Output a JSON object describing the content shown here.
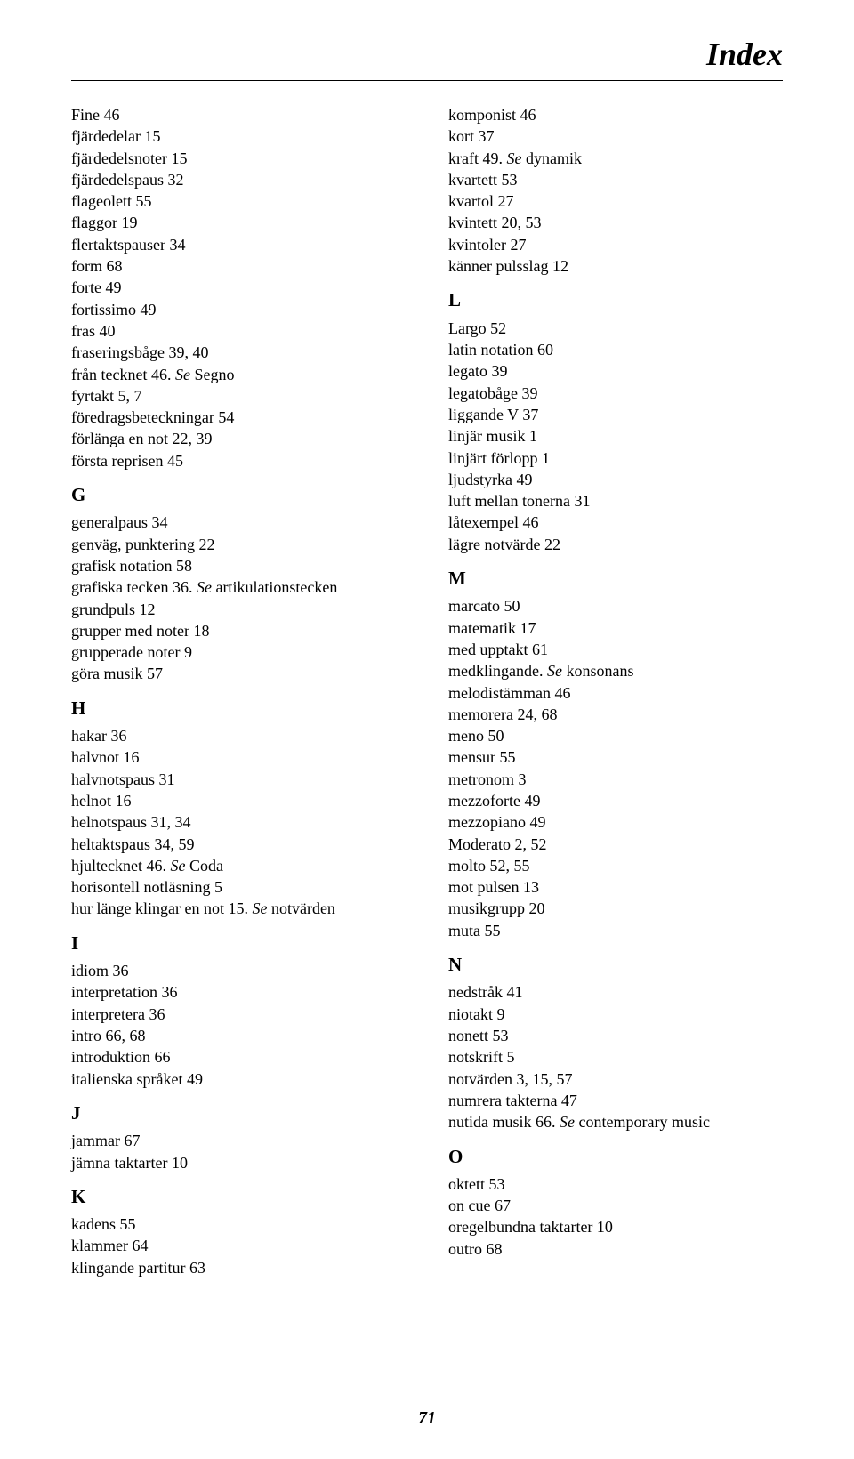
{
  "title": "Index",
  "pageNumber": "71",
  "columns": {
    "left": [
      {
        "type": "entry",
        "text": "Fine 46"
      },
      {
        "type": "entry",
        "text": "fjärdedelar 15"
      },
      {
        "type": "entry",
        "text": "fjärdedelsnoter 15"
      },
      {
        "type": "entry",
        "text": "fjärdedelspaus 32"
      },
      {
        "type": "entry",
        "text": "flageolett 55"
      },
      {
        "type": "entry",
        "text": "flaggor 19"
      },
      {
        "type": "entry",
        "text": "flertaktspauser 34"
      },
      {
        "type": "entry",
        "text": "form 68"
      },
      {
        "type": "entry",
        "text": "forte 49"
      },
      {
        "type": "entry",
        "text": "fortissimo 49"
      },
      {
        "type": "entry",
        "text": "fras 40"
      },
      {
        "type": "entry",
        "text": "fraseringsbåge 39, 40"
      },
      {
        "type": "see",
        "main": "från tecknet 46. ",
        "see": "Se",
        "rest": " Segno"
      },
      {
        "type": "entry",
        "text": "fyrtakt 5, 7"
      },
      {
        "type": "entry",
        "text": "föredragsbeteckningar 54"
      },
      {
        "type": "entry",
        "text": "förlänga en not 22, 39"
      },
      {
        "type": "entry",
        "text": "första reprisen 45"
      },
      {
        "type": "letter",
        "text": "G"
      },
      {
        "type": "entry",
        "text": "generalpaus 34"
      },
      {
        "type": "entry",
        "text": "genväg, punktering 22"
      },
      {
        "type": "entry",
        "text": "grafisk notation 58"
      },
      {
        "type": "see",
        "main": "grafiska tecken 36. ",
        "see": "Se",
        "rest": " artikulationstecken"
      },
      {
        "type": "entry",
        "text": "grundpuls 12"
      },
      {
        "type": "entry",
        "text": "grupper med noter 18"
      },
      {
        "type": "entry",
        "text": "grupperade noter 9"
      },
      {
        "type": "entry",
        "text": "göra musik 57"
      },
      {
        "type": "letter",
        "text": "H"
      },
      {
        "type": "entry",
        "text": "hakar 36"
      },
      {
        "type": "entry",
        "text": "halvnot 16"
      },
      {
        "type": "entry",
        "text": "halvnotspaus 31"
      },
      {
        "type": "entry",
        "text": "helnot 16"
      },
      {
        "type": "entry",
        "text": "helnotspaus 31, 34"
      },
      {
        "type": "entry",
        "text": "heltaktspaus 34, 59"
      },
      {
        "type": "see",
        "main": "hjultecknet 46. ",
        "see": "Se",
        "rest": " Coda"
      },
      {
        "type": "entry",
        "text": "horisontell notläsning 5"
      },
      {
        "type": "see",
        "main": "hur länge klingar en not 15. ",
        "see": "Se",
        "rest": " notvärden"
      },
      {
        "type": "letter",
        "text": "I"
      },
      {
        "type": "entry",
        "text": "idiom 36"
      },
      {
        "type": "entry",
        "text": "interpretation 36"
      },
      {
        "type": "entry",
        "text": "interpretera 36"
      },
      {
        "type": "entry",
        "text": "intro 66, 68"
      },
      {
        "type": "entry",
        "text": "introduktion 66"
      },
      {
        "type": "entry",
        "text": "italienska språket 49"
      },
      {
        "type": "letter",
        "text": "J"
      },
      {
        "type": "entry",
        "text": "jammar 67"
      },
      {
        "type": "entry",
        "text": "jämna taktarter 10"
      },
      {
        "type": "letter",
        "text": "K"
      },
      {
        "type": "entry",
        "text": "kadens 55"
      },
      {
        "type": "entry",
        "text": "klammer 64"
      },
      {
        "type": "entry",
        "text": "klingande partitur 63"
      }
    ],
    "right": [
      {
        "type": "entry",
        "text": "komponist 46"
      },
      {
        "type": "entry",
        "text": "kort 37"
      },
      {
        "type": "see",
        "main": "kraft 49. ",
        "see": "Se",
        "rest": " dynamik"
      },
      {
        "type": "entry",
        "text": "kvartett 53"
      },
      {
        "type": "entry",
        "text": "kvartol 27"
      },
      {
        "type": "entry",
        "text": "kvintett 20, 53"
      },
      {
        "type": "entry",
        "text": "kvintoler 27"
      },
      {
        "type": "entry",
        "text": "känner pulsslag 12"
      },
      {
        "type": "letter",
        "text": "L"
      },
      {
        "type": "entry",
        "text": "Largo 52"
      },
      {
        "type": "entry",
        "text": "latin notation 60"
      },
      {
        "type": "entry",
        "text": "legato 39"
      },
      {
        "type": "entry",
        "text": "legatobåge 39"
      },
      {
        "type": "entry",
        "text": "liggande V 37"
      },
      {
        "type": "entry",
        "text": "linjär musik 1"
      },
      {
        "type": "entry",
        "text": "linjärt förlopp 1"
      },
      {
        "type": "entry",
        "text": "ljudstyrka 49"
      },
      {
        "type": "entry",
        "text": "luft mellan tonerna 31"
      },
      {
        "type": "entry",
        "text": "låtexempel 46"
      },
      {
        "type": "entry",
        "text": "lägre notvärde 22"
      },
      {
        "type": "letter",
        "text": "M"
      },
      {
        "type": "entry",
        "text": "marcato 50"
      },
      {
        "type": "entry",
        "text": "matematik 17"
      },
      {
        "type": "entry",
        "text": "med upptakt 61"
      },
      {
        "type": "see",
        "main": "medklingande. ",
        "see": "Se",
        "rest": " konsonans"
      },
      {
        "type": "entry",
        "text": "melodistämman 46"
      },
      {
        "type": "entry",
        "text": "memorera 24, 68"
      },
      {
        "type": "entry",
        "text": "meno 50"
      },
      {
        "type": "entry",
        "text": "mensur 55"
      },
      {
        "type": "entry",
        "text": "metronom 3"
      },
      {
        "type": "entry",
        "text": "mezzoforte 49"
      },
      {
        "type": "entry",
        "text": "mezzopiano 49"
      },
      {
        "type": "entry",
        "text": "Moderato 2, 52"
      },
      {
        "type": "entry",
        "text": "molto 52, 55"
      },
      {
        "type": "entry",
        "text": "mot pulsen 13"
      },
      {
        "type": "entry",
        "text": "musikgrupp 20"
      },
      {
        "type": "entry",
        "text": "muta 55"
      },
      {
        "type": "letter",
        "text": "N"
      },
      {
        "type": "entry",
        "text": "nedstråk 41"
      },
      {
        "type": "entry",
        "text": "niotakt 9"
      },
      {
        "type": "entry",
        "text": "nonett 53"
      },
      {
        "type": "entry",
        "text": "notskrift 5"
      },
      {
        "type": "entry",
        "text": "notvärden 3, 15, 57"
      },
      {
        "type": "entry",
        "text": "numrera takterna 47"
      },
      {
        "type": "see",
        "main": "nutida musik 66. ",
        "see": "Se",
        "rest": " contemporary music"
      },
      {
        "type": "letter",
        "text": "O"
      },
      {
        "type": "entry",
        "text": "oktett 53"
      },
      {
        "type": "entry",
        "text": "on cue 67"
      },
      {
        "type": "entry",
        "text": "oregelbundna taktarter 10"
      },
      {
        "type": "entry",
        "text": "outro 68"
      }
    ]
  }
}
